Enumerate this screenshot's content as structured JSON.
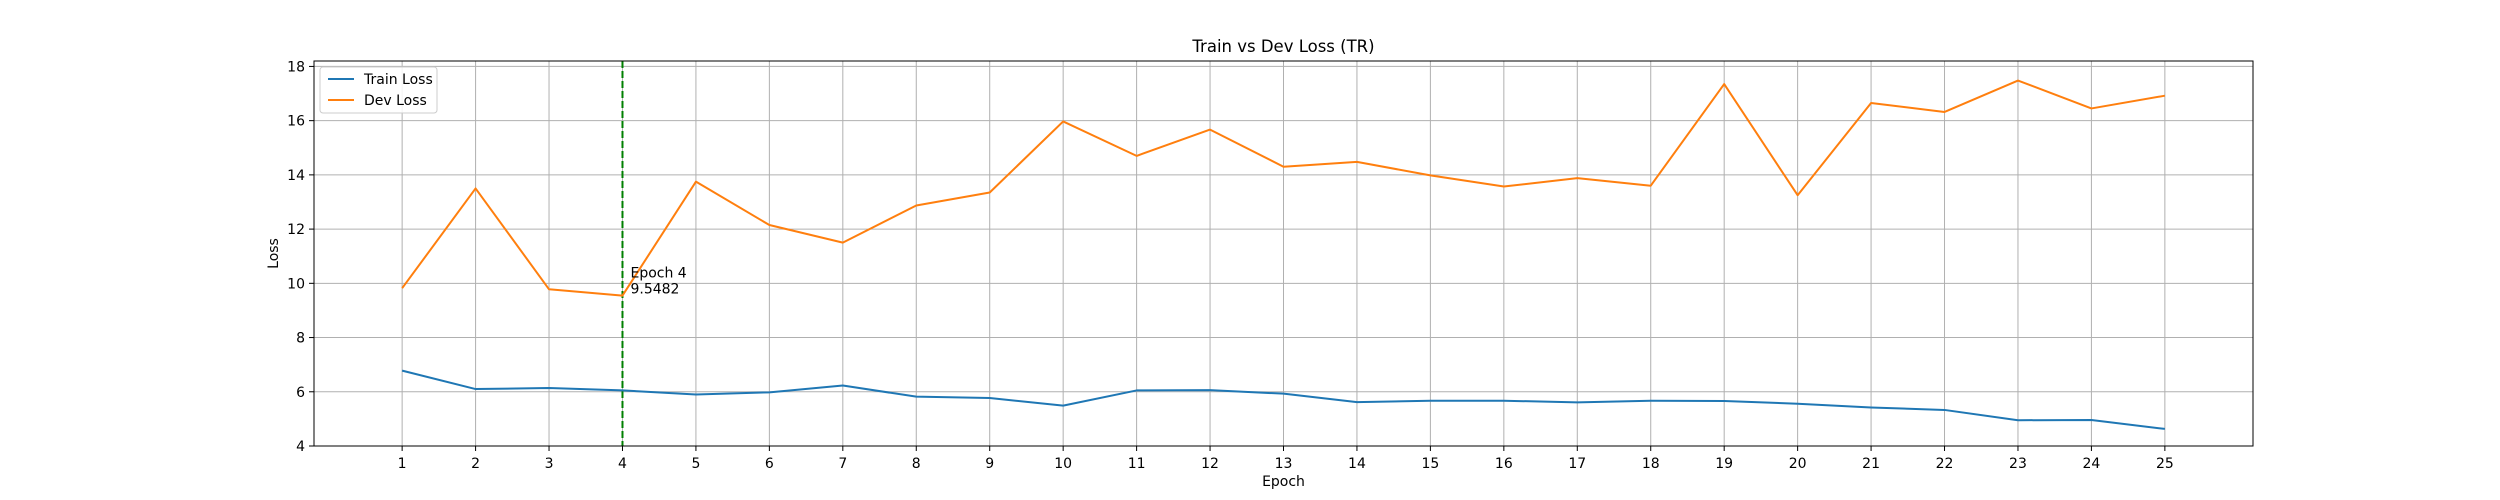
{
  "chart_data": {
    "type": "line",
    "title": "Train vs Dev Loss (TR)",
    "xlabel": "Epoch",
    "ylabel": "Loss",
    "x": [
      1,
      2,
      3,
      4,
      5,
      6,
      7,
      8,
      9,
      10,
      11,
      12,
      13,
      14,
      15,
      16,
      17,
      18,
      19,
      20,
      21,
      22,
      23,
      24,
      25
    ],
    "xlim": [
      -0.2,
      26.2
    ],
    "ylim": [
      4,
      18.2
    ],
    "yticks": [
      4,
      6,
      8,
      10,
      12,
      14,
      16,
      18
    ],
    "grid": true,
    "legend_position": "top-left",
    "series": [
      {
        "name": "Train Loss",
        "color": "#1f77b4",
        "values": [
          6.78,
          6.1,
          6.14,
          6.05,
          5.9,
          5.98,
          6.23,
          5.82,
          5.77,
          5.49,
          6.05,
          6.06,
          5.93,
          5.62,
          5.67,
          5.67,
          5.61,
          5.67,
          5.66,
          5.56,
          5.42,
          5.33,
          4.95,
          4.96,
          4.63
        ]
      },
      {
        "name": "Dev Loss",
        "color": "#ff7f0e",
        "values": [
          9.82,
          13.5,
          9.78,
          9.5482,
          13.75,
          12.15,
          11.5,
          12.87,
          13.35,
          15.97,
          14.7,
          15.67,
          14.3,
          14.48,
          13.98,
          13.57,
          13.88,
          13.6,
          17.35,
          13.25,
          16.65,
          16.32,
          17.48,
          16.45,
          16.92
        ]
      }
    ],
    "vline": {
      "x": 4,
      "color": "#008000"
    },
    "annotation": {
      "x": 4,
      "line1": "Epoch 4",
      "line2": "9.5482"
    }
  }
}
